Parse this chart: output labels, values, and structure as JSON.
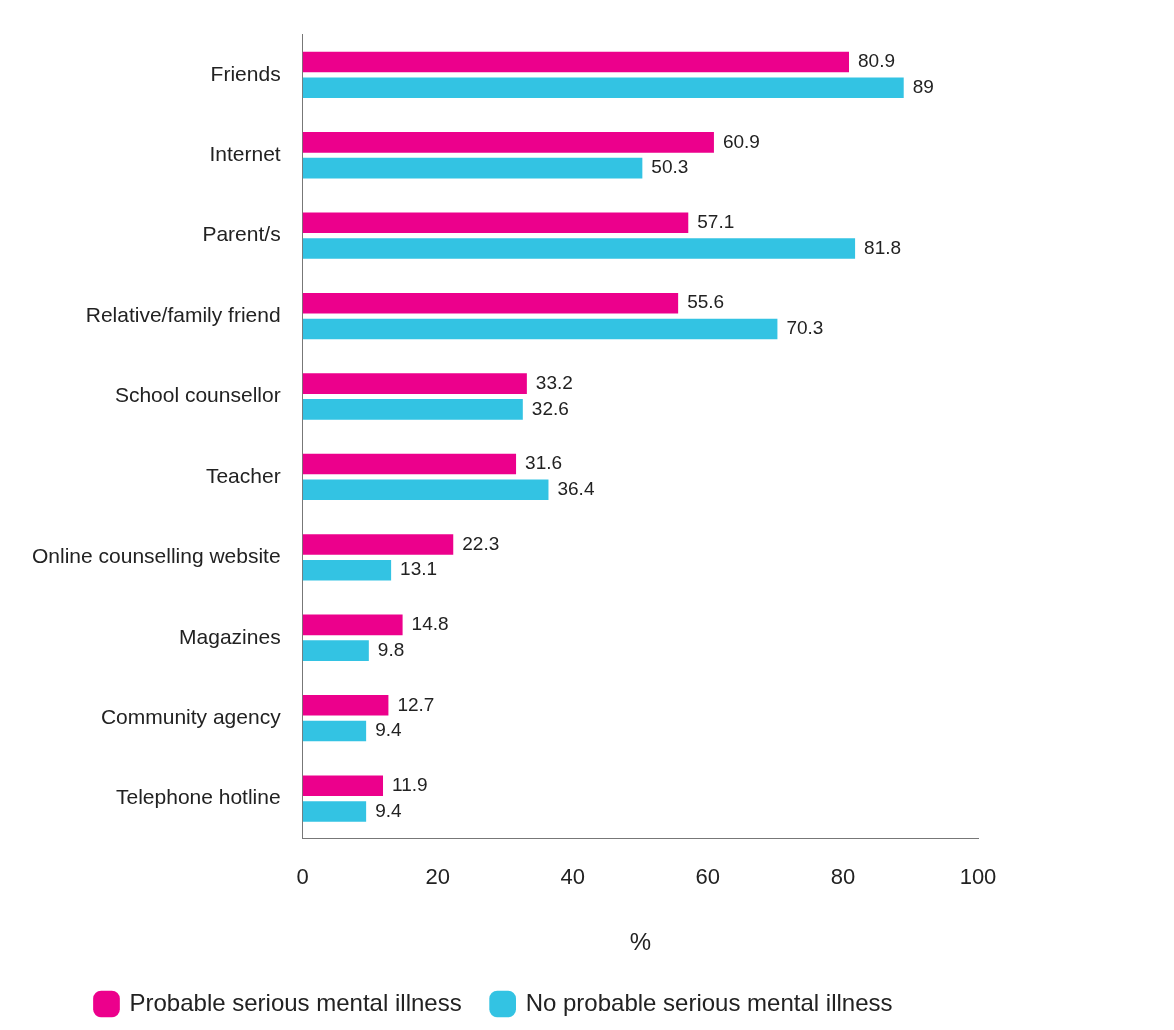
{
  "chart_data": {
    "type": "bar",
    "orientation": "horizontal",
    "categories": [
      "Friends",
      "Internet",
      "Parent/s",
      "Relative/family friend",
      "School counsellor",
      "Teacher",
      "Online counselling website",
      "Magazines",
      "Community agency",
      "Telephone hotline"
    ],
    "series": [
      {
        "name": "Probable serious mental illness",
        "color": "#ec008c",
        "values": [
          80.9,
          60.9,
          57.1,
          55.6,
          33.2,
          31.6,
          22.3,
          14.8,
          12.7,
          11.9
        ]
      },
      {
        "name": "No probable serious mental illness",
        "color": "#33c3e3",
        "values": [
          89,
          50.3,
          81.8,
          70.3,
          32.6,
          36.4,
          13.1,
          9.8,
          9.4,
          9.4
        ]
      }
    ],
    "xlim": [
      0,
      100
    ],
    "xticks": [
      0,
      20,
      40,
      60,
      80,
      100
    ],
    "xlabel": "%",
    "data_labels": true,
    "grid": false,
    "legend": "bottom"
  }
}
